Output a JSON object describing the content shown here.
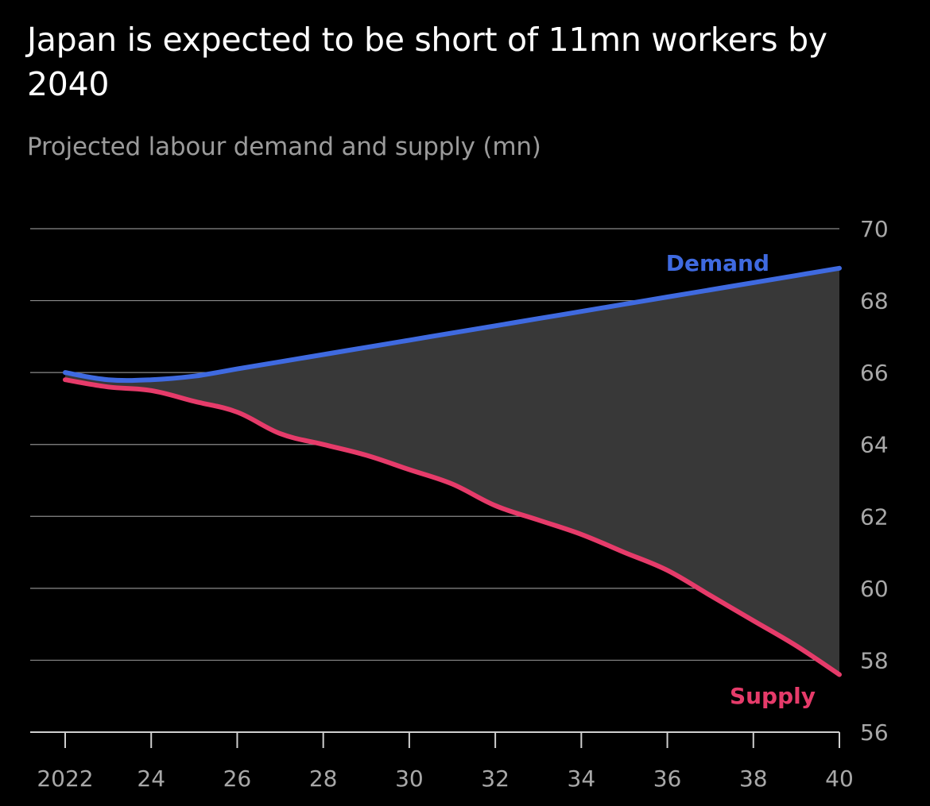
{
  "title": "Japan is expected to be short of 11mn workers by 2040",
  "subtitle": "Projected labour demand and supply (mn)",
  "colors": {
    "background": "#000000",
    "demand": "#3f6ae0",
    "supply": "#e63b6a",
    "gap_fill": "#383838",
    "grid": "#8a8a8a",
    "tick_text": "#a8a8a8"
  },
  "chart_data": {
    "type": "line",
    "x": [
      2022,
      2023,
      2024,
      2025,
      2026,
      2027,
      2028,
      2029,
      2030,
      2031,
      2032,
      2033,
      2034,
      2035,
      2036,
      2037,
      2038,
      2039,
      2040
    ],
    "series": [
      {
        "name": "Demand",
        "values": [
          66.0,
          65.8,
          65.8,
          65.9,
          66.1,
          66.3,
          66.5,
          66.7,
          66.9,
          67.1,
          67.3,
          67.5,
          67.7,
          67.9,
          68.1,
          68.3,
          68.5,
          68.7,
          68.9
        ]
      },
      {
        "name": "Supply",
        "values": [
          65.8,
          65.6,
          65.5,
          65.2,
          64.9,
          64.3,
          64.0,
          63.7,
          63.3,
          62.9,
          62.3,
          61.9,
          61.5,
          61.0,
          60.5,
          59.8,
          59.1,
          58.4,
          57.6
        ]
      }
    ],
    "xlim": [
      2022,
      2040
    ],
    "ylim": [
      56,
      70
    ],
    "yticks": [
      56,
      58,
      60,
      62,
      64,
      66,
      68,
      70
    ],
    "xticks": [
      2022,
      2024,
      2026,
      2028,
      2030,
      2032,
      2034,
      2036,
      2038,
      2040
    ],
    "xtick_labels": [
      "2022",
      "24",
      "26",
      "28",
      "30",
      "32",
      "34",
      "36",
      "38",
      "40"
    ],
    "ytick_labels": [
      "56",
      "58",
      "60",
      "62",
      "64",
      "66",
      "68",
      "70"
    ],
    "xlabel": "",
    "ylabel": "",
    "grid": true,
    "y_axis_side": "right",
    "shade_between_series": true
  }
}
